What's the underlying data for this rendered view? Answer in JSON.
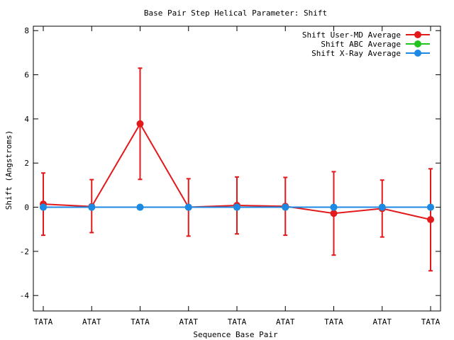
{
  "chart_data": {
    "type": "line",
    "title": "Base Pair Step Helical Parameter: Shift",
    "xlabel": "Sequence Base Pair",
    "ylabel": "Shift (Angstroms)",
    "categories": [
      "TATA",
      "ATAT",
      "TATA",
      "ATAT",
      "TATA",
      "ATAT",
      "TATA",
      "ATAT",
      "TATA"
    ],
    "ylim": [
      -4.7,
      8.2
    ],
    "yticks": [
      -4,
      -2,
      0,
      2,
      4,
      6,
      8
    ],
    "grid": false,
    "legend_position": "top-right",
    "series": [
      {
        "name": "Shift User-MD Average",
        "color": "#e31a1c",
        "values": [
          0.14,
          0.03,
          3.78,
          0.0,
          0.08,
          0.04,
          -0.28,
          -0.06,
          -0.56
        ],
        "err_low": [
          -1.27,
          -1.15,
          1.26,
          -1.31,
          -1.21,
          -1.27,
          -2.17,
          -1.35,
          -2.88
        ],
        "err_high": [
          1.55,
          1.25,
          6.3,
          1.29,
          1.37,
          1.35,
          1.61,
          1.23,
          1.74
        ]
      },
      {
        "name": "Shift ABC Average",
        "color": "#22c41e",
        "values": [
          0,
          0,
          0,
          0,
          0,
          0,
          0,
          0,
          0
        ]
      },
      {
        "name": "Shift X-Ray Average",
        "color": "#1e88e5",
        "values": [
          0,
          0,
          0,
          0,
          0,
          0,
          0,
          0,
          0
        ]
      }
    ]
  }
}
